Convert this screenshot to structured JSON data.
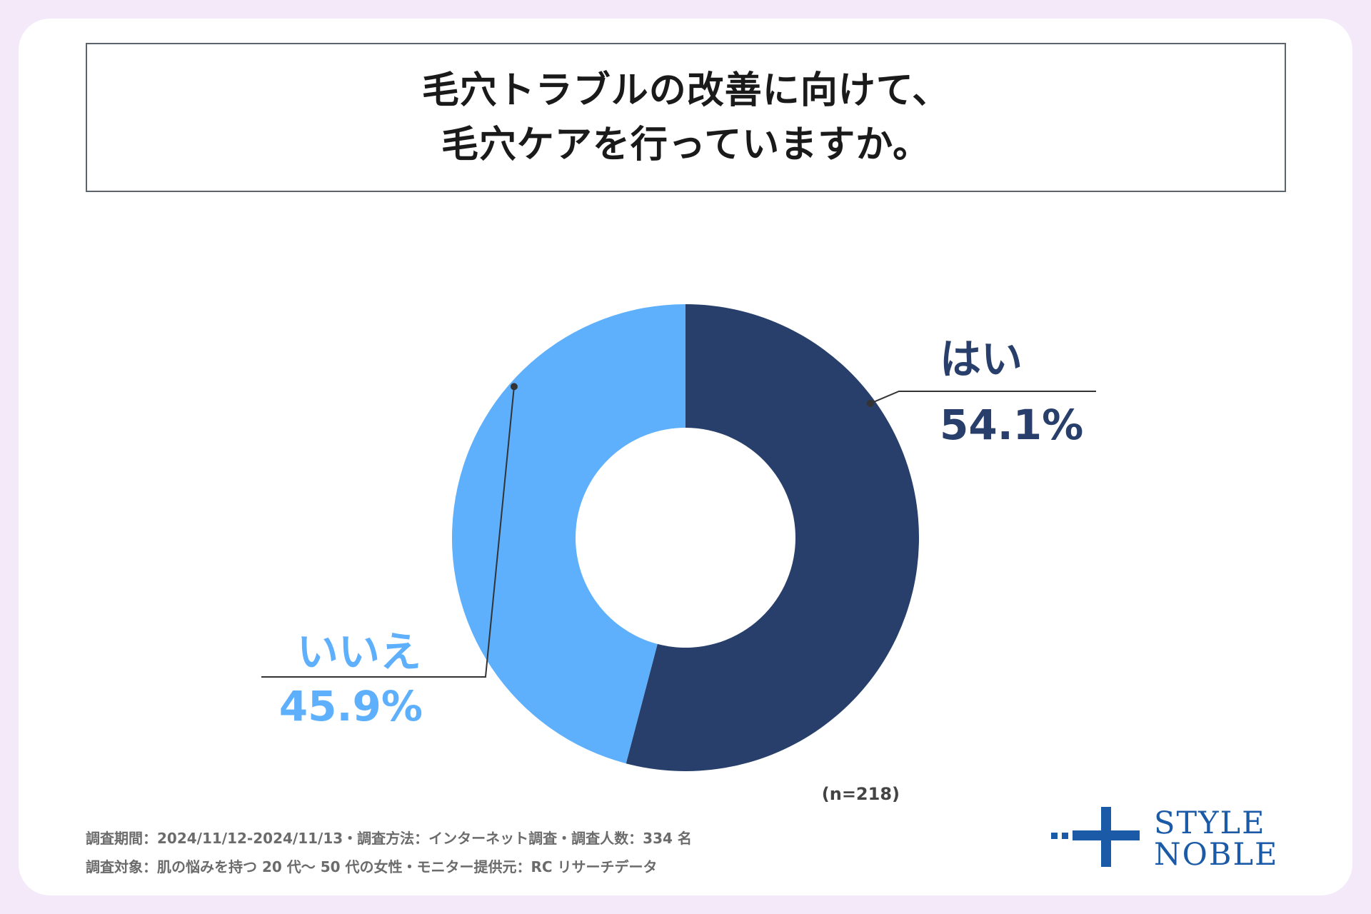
{
  "title": {
    "line1": "毛穴トラブルの改善に向けて、",
    "line2": "毛穴ケアを行っていますか。"
  },
  "colors": {
    "yes": "#273f6a",
    "no": "#5eb0fc",
    "leader": "#333333",
    "brand": "#1b5aa6"
  },
  "chart_data": {
    "type": "pie",
    "variant": "donut",
    "title": "毛穴トラブルの改善に向けて、毛穴ケアを行っていますか。",
    "slices": [
      {
        "label": "はい",
        "value": 54.1,
        "value_label": "54.1%",
        "color": "#273f6a"
      },
      {
        "label": "いいえ",
        "value": 45.9,
        "value_label": "45.9%",
        "color": "#5eb0fc"
      }
    ],
    "sample_size": "(n=218)"
  },
  "footnotes": {
    "line1": "調査期間：2024/11/12-2024/11/13・調査方法：インターネット調査・調査人数：334 名",
    "line2": "調査対象：肌の悩みを持つ 20 代〜 50 代の女性・モニター提供元：RC リサーチデータ"
  },
  "logo": {
    "line1": "STYLE",
    "line2": "NOBLE"
  }
}
